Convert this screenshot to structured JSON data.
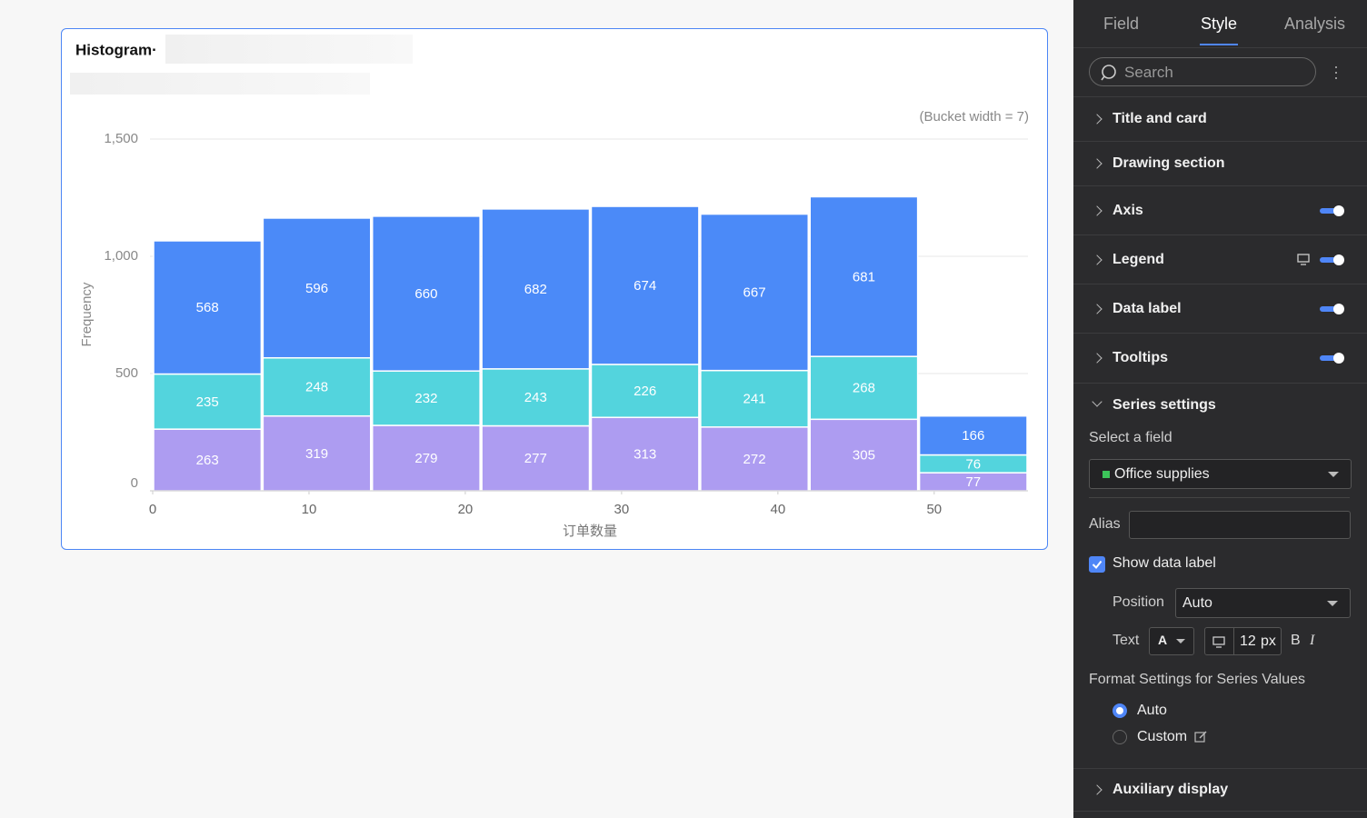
{
  "chart_data": {
    "type": "histogram",
    "title": "Histogram·",
    "note": "(Bucket width = 7)",
    "y_label": "Frequency",
    "x_label": "订单数量",
    "bins": [
      0,
      7,
      14,
      21,
      28,
      35,
      42,
      49,
      56
    ],
    "series": [
      {
        "color": "#ad9cf1",
        "values": [
          263,
          319,
          279,
          277,
          313,
          272,
          305,
          77
        ]
      },
      {
        "color": "#53d4dd",
        "values": [
          235,
          248,
          232,
          243,
          226,
          241,
          268,
          76
        ]
      },
      {
        "color": "#4b8af8",
        "values": [
          568,
          596,
          660,
          682,
          674,
          667,
          681,
          166
        ]
      }
    ],
    "xlim": [
      0,
      56
    ],
    "xticks": [
      0,
      10,
      20,
      30,
      40,
      50
    ],
    "ylim": [
      0,
      1500
    ],
    "yticks": [
      0,
      500,
      {
        "value": 1000,
        "label": "1,000"
      },
      {
        "value": 1500,
        "label": "1,500"
      }
    ],
    "grid": true
  },
  "panel": {
    "tabs": [
      "Field",
      "Style",
      "Analysis"
    ],
    "active_tab": 1,
    "search_placeholder": "Search",
    "sections": [
      {
        "label": "Title and card",
        "toggle": false
      },
      {
        "label": "Drawing section",
        "toggle": false
      },
      {
        "label": "Axis",
        "toggle": true
      },
      {
        "label": "Legend",
        "toggle": true
      },
      {
        "label": "Data label",
        "toggle": true
      },
      {
        "label": "Tooltips",
        "toggle": true
      },
      {
        "label": "Series settings",
        "toggle": false
      }
    ],
    "select_field_label": "Select a field",
    "field": "Office supplies",
    "alias_label": "Alias",
    "show_data_label": "Show data label",
    "show_data_label_checked": true,
    "position_label": "Position",
    "position": "Auto",
    "text_label": "Text",
    "font_color_glyph": "A",
    "font_size": 12,
    "font_size_unit": "px",
    "bold": "B",
    "italic": "I",
    "format_title": "Format Settings for Series Values",
    "format_options": [
      "Auto",
      "Custom"
    ],
    "format_selected": 0,
    "last_section": "Auxiliary display"
  }
}
